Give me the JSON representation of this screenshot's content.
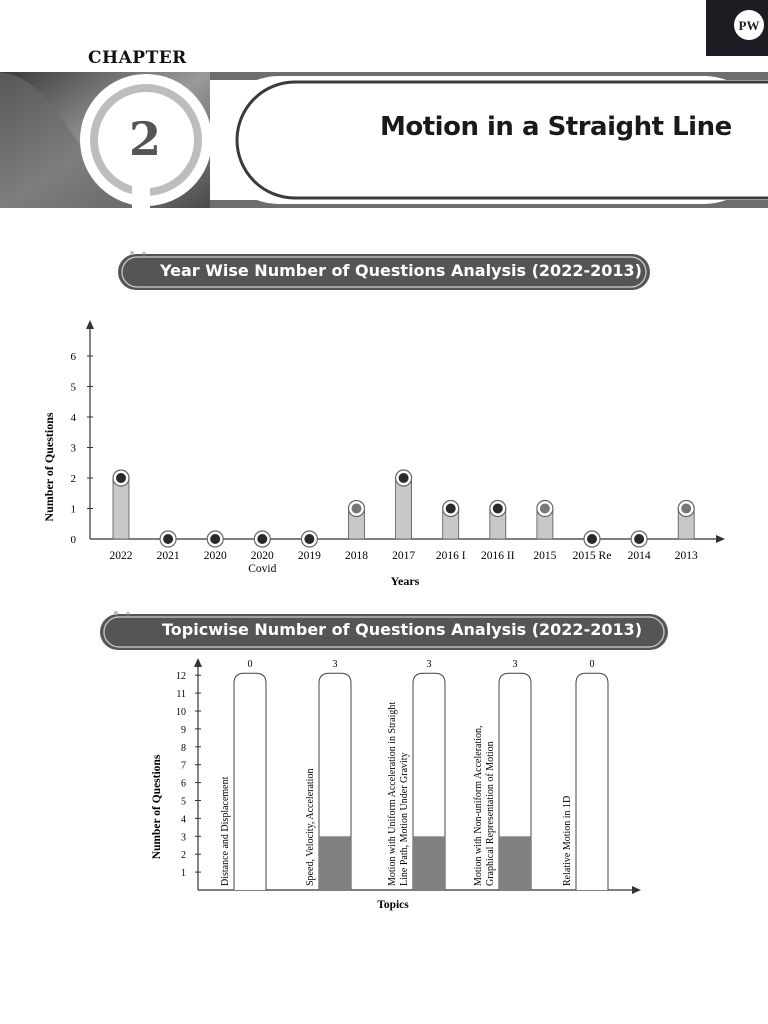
{
  "header": {
    "chapter_word": "CHAPTER",
    "chapter_number": "2",
    "title": "Motion in a Straight Line",
    "logo_text": "PW"
  },
  "colors": {
    "banner": "#555555",
    "bar_fill": "#c8c8c8",
    "bar_fill_dark": "#808080",
    "marker": "#2a2a2a"
  },
  "chart_data": [
    {
      "type": "bar",
      "title": "Year Wise Number of Questions Analysis (2022-2013)",
      "xlabel": "Years",
      "ylabel": "Number of Questions",
      "categories": [
        "2022",
        "2021",
        "2020",
        "2020\nCovid",
        "2019",
        "2018",
        "2017",
        "2016 I",
        "2016 II",
        "2015",
        "2015 Re",
        "2014",
        "2013"
      ],
      "values": [
        2,
        0,
        0,
        0,
        0,
        1,
        2,
        1,
        1,
        1,
        0,
        0,
        1
      ],
      "yticks": [
        0,
        1,
        2,
        3,
        4,
        5,
        6
      ],
      "ylim": [
        0,
        6.5
      ],
      "grid": false
    },
    {
      "type": "bar",
      "title": "Topicwise Number of Questions Analysis (2022-2013)",
      "xlabel": "Topics",
      "ylabel": "Number of Questions",
      "categories": [
        "Distance and Displacement",
        "Speed, Velocity, Acceleration",
        "Motion with Uniform Acceleration in Straight Line Path, Motion Under Gravity",
        "Motion with Non-uniform Acceleration, Graphical Representation of Motion",
        "Relative Motion in 1D"
      ],
      "values": [
        0,
        3,
        3,
        3,
        0
      ],
      "value_labels": [
        "0",
        "3",
        "3",
        "3",
        "0"
      ],
      "yticks": [
        1,
        2,
        3,
        4,
        5,
        6,
        7,
        8,
        9,
        10,
        11,
        12
      ],
      "ylim": [
        0,
        12
      ],
      "grid": false
    }
  ]
}
